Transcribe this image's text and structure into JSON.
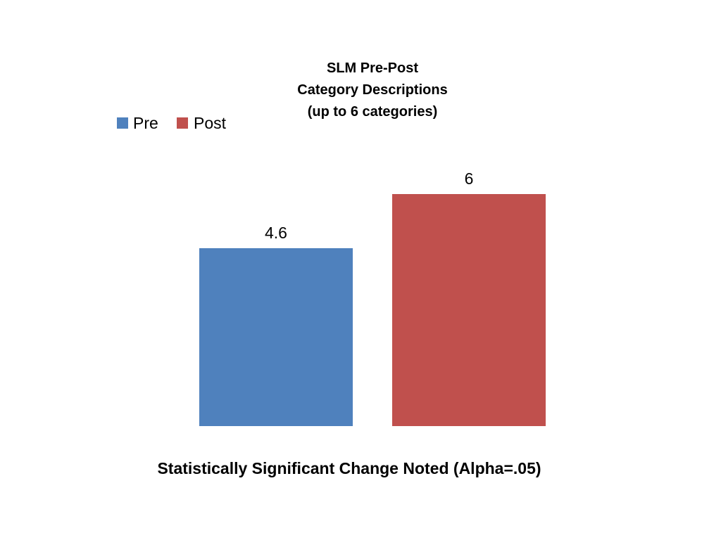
{
  "chart_data": {
    "type": "bar",
    "title_lines": [
      "SLM Pre-Post",
      "Category Descriptions",
      "(up to 6 categories)"
    ],
    "xlabel": "Statistically Significant Change Noted (Alpha=.05)",
    "ylabel": "",
    "categories": [
      ""
    ],
    "series": [
      {
        "name": "Pre",
        "values": [
          4.6
        ],
        "color": "#4F81BD"
      },
      {
        "name": "Post",
        "values": [
          6
        ],
        "color": "#C0504D"
      }
    ],
    "ylim": [
      0,
      7.2
    ],
    "grid": false,
    "legend": "top-left",
    "data_labels": true
  }
}
